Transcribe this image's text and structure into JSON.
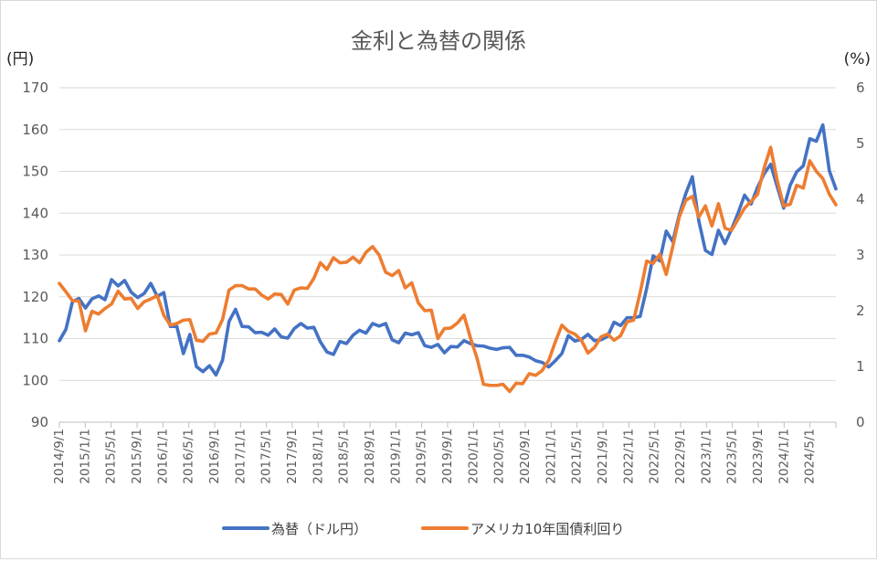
{
  "chart_data": {
    "type": "line",
    "title": "金利と為替の関係",
    "y_left_unit": "(円)",
    "y_right_unit": "(%)",
    "y_left_lim": [
      90,
      170
    ],
    "y_right_lim": [
      0,
      6
    ],
    "y_left_ticks": [
      "90",
      "100",
      "110",
      "120",
      "130",
      "140",
      "150",
      "160",
      "170"
    ],
    "y_right_ticks": [
      "0",
      "1",
      "2",
      "3",
      "4",
      "5",
      "6"
    ],
    "grid": true,
    "legend_position": "bottom",
    "x_tick_labels": [
      "2014/9/1",
      "2015/1/1",
      "2015/5/1",
      "2015/9/1",
      "2016/1/1",
      "2016/5/1",
      "2016/9/1",
      "2017/1/1",
      "2017/5/1",
      "2017/9/1",
      "2018/1/1",
      "2018/5/1",
      "2018/9/1",
      "2019/1/1",
      "2019/5/1",
      "2019/9/1",
      "2020/1/1",
      "2020/5/1",
      "2020/9/1",
      "2021/1/1",
      "2021/5/1",
      "2021/9/1",
      "2022/1/1",
      "2022/5/1",
      "2022/9/1",
      "2023/1/1",
      "2023/5/1",
      "2023/9/1",
      "2024/1/1",
      "2024/5/1"
    ],
    "x_start": "2014/9/1",
    "x_interval_months": 1,
    "series": [
      {
        "name": "為替（ドル円）",
        "axis": "left",
        "color": "#4472C4",
        "values": [
          109.5,
          112.2,
          118.8,
          119.6,
          117.3,
          119.5,
          120.2,
          119.3,
          124.1,
          122.6,
          123.9,
          121.1,
          119.8,
          120.8,
          123.2,
          120.1,
          121.0,
          112.9,
          112.9,
          106.4,
          111.0,
          103.3,
          102.1,
          103.5,
          101.3,
          104.8,
          114.1,
          117.0,
          112.9,
          112.8,
          111.4,
          111.5,
          110.8,
          112.3,
          110.4,
          110.1,
          112.4,
          113.6,
          112.5,
          112.7,
          109.2,
          106.8,
          106.2,
          109.3,
          108.8,
          110.8,
          112.0,
          111.3,
          113.6,
          113.0,
          113.6,
          109.7,
          109.0,
          111.3,
          110.9,
          111.4,
          108.3,
          107.9,
          108.6,
          106.6,
          108.1,
          108.0,
          109.5,
          108.8,
          108.3,
          108.2,
          107.7,
          107.4,
          107.8,
          107.9,
          106.0,
          106.0,
          105.6,
          104.7,
          104.3,
          103.2,
          104.7,
          106.4,
          110.7,
          109.4,
          109.8,
          111.0,
          109.5,
          109.7,
          110.5,
          113.9,
          113.1,
          115.0,
          115.0,
          115.3,
          122.0,
          129.8,
          128.6,
          135.7,
          133.2,
          139.6,
          144.7,
          148.7,
          138.1,
          131.1,
          130.1,
          135.9,
          132.7,
          136.1,
          140.0,
          144.3,
          142.2,
          146.2,
          149.4,
          151.7,
          146.4,
          141.2,
          146.7,
          149.9,
          151.3,
          157.8,
          157.2,
          161.1,
          150.1,
          145.8
        ]
      },
      {
        "name": "アメリカ10年国債利回り",
        "axis": "right",
        "color": "#ED7D31",
        "values": [
          2.49,
          2.34,
          2.18,
          2.17,
          1.64,
          1.99,
          1.94,
          2.04,
          2.12,
          2.35,
          2.21,
          2.22,
          2.04,
          2.16,
          2.21,
          2.27,
          1.92,
          1.74,
          1.77,
          1.83,
          1.84,
          1.47,
          1.45,
          1.58,
          1.6,
          1.84,
          2.37,
          2.45,
          2.45,
          2.39,
          2.39,
          2.28,
          2.21,
          2.3,
          2.29,
          2.12,
          2.37,
          2.41,
          2.4,
          2.58,
          2.86,
          2.74,
          2.95,
          2.86,
          2.87,
          2.96,
          2.86,
          3.05,
          3.15,
          3.0,
          2.69,
          2.63,
          2.72,
          2.41,
          2.5,
          2.14,
          2.0,
          2.01,
          1.5,
          1.68,
          1.69,
          1.78,
          1.92,
          1.51,
          1.15,
          0.68,
          0.66,
          0.66,
          0.68,
          0.55,
          0.7,
          0.69,
          0.87,
          0.84,
          0.93,
          1.11,
          1.44,
          1.74,
          1.63,
          1.58,
          1.47,
          1.24,
          1.34,
          1.53,
          1.58,
          1.47,
          1.55,
          1.8,
          1.83,
          2.32,
          2.89,
          2.85,
          3.01,
          2.65,
          3.15,
          3.68,
          3.98,
          4.05,
          3.68,
          3.88,
          3.52,
          3.92,
          3.48,
          3.44,
          3.64,
          3.84,
          3.96,
          4.09,
          4.56,
          4.93,
          4.34,
          3.88,
          3.91,
          4.25,
          4.2,
          4.69,
          4.5,
          4.37,
          4.09,
          3.9
        ]
      }
    ]
  }
}
